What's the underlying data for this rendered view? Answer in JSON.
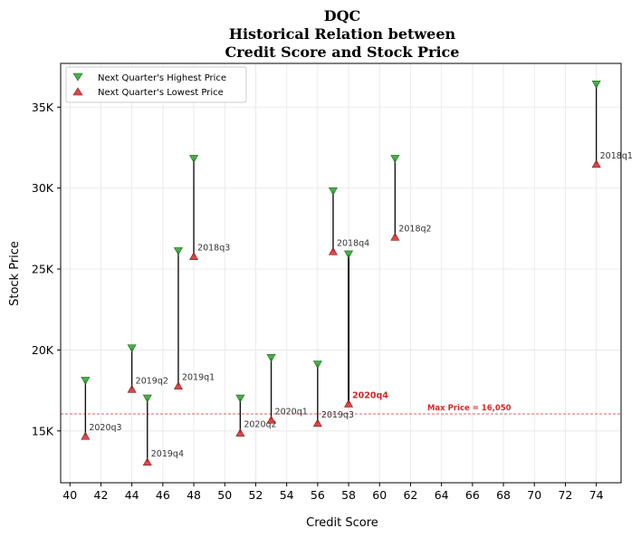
{
  "chart_data": {
    "type": "scatter",
    "title_lines": [
      "DQC",
      "Historical Relation between",
      "Credit Score and Stock Price"
    ],
    "xlabel": "Credit Score",
    "ylabel": "Stock Price",
    "xlim": [
      39.4,
      75.6
    ],
    "ylim": [
      11800,
      37700
    ],
    "x_ticks": [
      40,
      42,
      44,
      46,
      48,
      50,
      52,
      54,
      56,
      58,
      60,
      62,
      64,
      66,
      68,
      70,
      72,
      74
    ],
    "y_ticks": [
      15000,
      20000,
      25000,
      30000,
      35000
    ],
    "y_tick_labels": [
      "15K",
      "20K",
      "25K",
      "30K",
      "35K"
    ],
    "grid": true,
    "legend_position": "top-left",
    "series": [
      {
        "name": "Next Quarter's Highest Price",
        "marker": "triangle-down",
        "color": "#2ca02c"
      },
      {
        "name": "Next Quarter's Lowest Price",
        "marker": "triangle-up",
        "color": "#d62728"
      }
    ],
    "points": [
      {
        "label": "2020q3",
        "x": 41,
        "high": 18100,
        "low": 14700
      },
      {
        "label": "2019q2",
        "x": 44,
        "high": 20100,
        "low": 17600
      },
      {
        "label": "2019q4",
        "x": 45,
        "high": 17000,
        "low": 13100
      },
      {
        "label": "2019q1",
        "x": 47,
        "high": 26100,
        "low": 17800
      },
      {
        "label": "2018q3",
        "x": 48,
        "high": 31800,
        "low": 25800
      },
      {
        "label": "2020q2",
        "x": 51,
        "high": 17000,
        "low": 14900
      },
      {
        "label": "2020q1",
        "x": 53,
        "high": 19500,
        "low": 15700
      },
      {
        "label": "2019q3",
        "x": 56,
        "high": 19100,
        "low": 15500
      },
      {
        "label": "2018q4",
        "x": 57,
        "high": 29800,
        "low": 26100
      },
      {
        "label": "2020q4",
        "x": 58,
        "high": 25900,
        "low": 16700,
        "highlight": true
      },
      {
        "label": "2018q2",
        "x": 61,
        "high": 31800,
        "low": 27000
      },
      {
        "label": "2018q1",
        "x": 74,
        "high": 36400,
        "low": 31500
      }
    ],
    "reference_line": {
      "y": 16050,
      "label": "Max Price = 16,050",
      "color": "#d62728"
    }
  }
}
